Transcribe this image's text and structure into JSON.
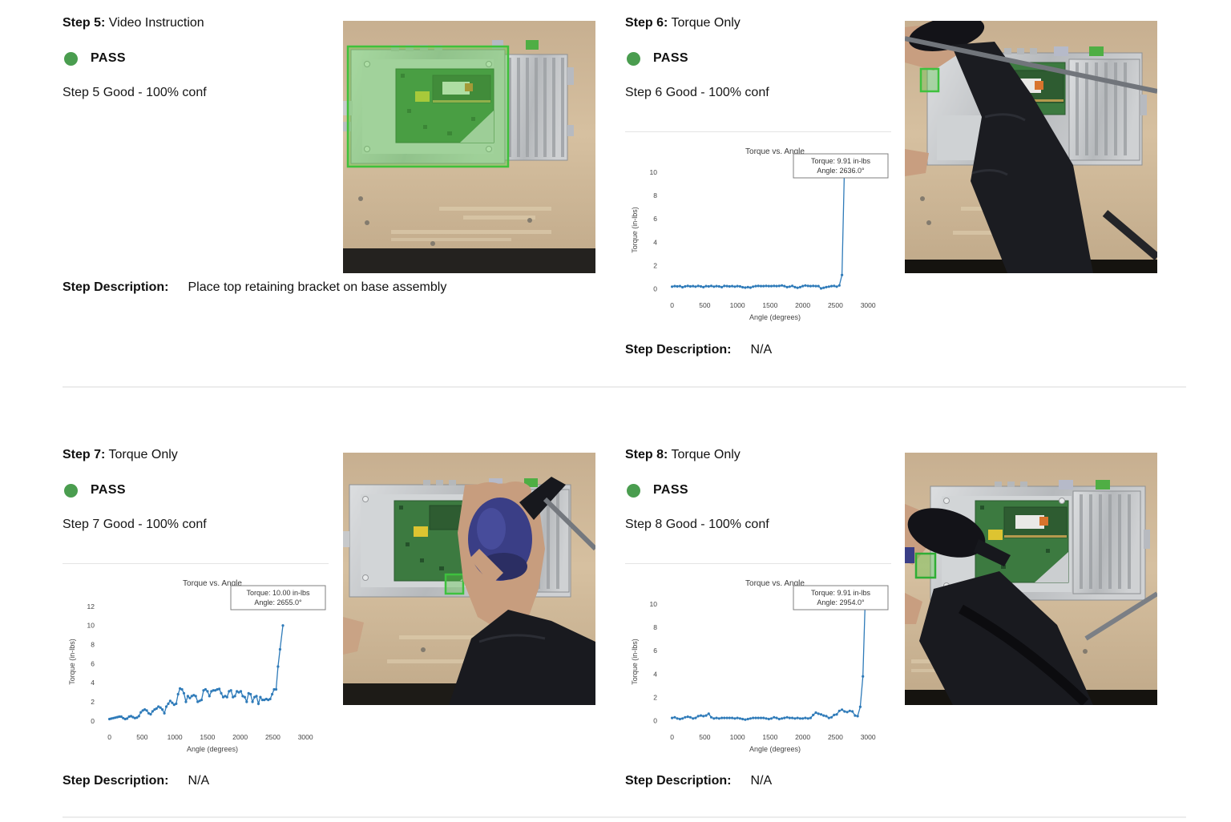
{
  "colors": {
    "pass_green": "#4a9d4f",
    "chart_line": "#2f7bb9",
    "detection_green": "#3ec13e"
  },
  "steps": [
    {
      "title_label": "Step 5:",
      "title_type": "Video Instruction",
      "status": "PASS",
      "result": "Step 5 Good - 100% conf",
      "desc_label": "Step Description:",
      "desc": "Place top retaining bracket on base assembly"
    },
    {
      "title_label": "Step 6:",
      "title_type": "Torque Only",
      "status": "PASS",
      "result": "Step 6 Good - 100% conf",
      "desc_label": "Step Description:",
      "desc": "N/A"
    },
    {
      "title_label": "Step 7:",
      "title_type": "Torque Only",
      "status": "PASS",
      "result": "Step 7 Good - 100% conf",
      "desc_label": "Step Description:",
      "desc": "N/A"
    },
    {
      "title_label": "Step 8:",
      "title_type": "Torque Only",
      "status": "PASS",
      "result": "Step 8 Good - 100% conf",
      "desc_label": "Step Description:",
      "desc": "N/A"
    }
  ],
  "chart_data": [
    {
      "type": "line",
      "step": "Step 6",
      "title": "Torque vs. Angle",
      "xlabel": "Angle (degrees)",
      "ylabel": "Torque (in-lbs)",
      "x_ticks": [
        0,
        500,
        1000,
        1500,
        2000,
        2500,
        3000
      ],
      "y_ticks": [
        0,
        2,
        4,
        6,
        8,
        10
      ],
      "xlim": [
        -130,
        3280
      ],
      "ylim": [
        -0.5,
        10.6
      ],
      "grid": false,
      "legend": null,
      "annotation": [
        "Torque: 9.91 in-lbs",
        "Angle: 2636.0°"
      ],
      "final_torque_inlbs": 9.91,
      "final_angle_deg": 2636.0,
      "points": [
        [
          0,
          0.2
        ],
        [
          40,
          0.25
        ],
        [
          80,
          0.22
        ],
        [
          120,
          0.25
        ],
        [
          160,
          0.15
        ],
        [
          200,
          0.22
        ],
        [
          240,
          0.26
        ],
        [
          280,
          0.22
        ],
        [
          320,
          0.25
        ],
        [
          360,
          0.2
        ],
        [
          400,
          0.26
        ],
        [
          440,
          0.22
        ],
        [
          480,
          0.16
        ],
        [
          520,
          0.25
        ],
        [
          560,
          0.22
        ],
        [
          600,
          0.26
        ],
        [
          640,
          0.2
        ],
        [
          680,
          0.25
        ],
        [
          720,
          0.22
        ],
        [
          760,
          0.16
        ],
        [
          800,
          0.26
        ],
        [
          840,
          0.25
        ],
        [
          880,
          0.22
        ],
        [
          920,
          0.25
        ],
        [
          960,
          0.2
        ],
        [
          1000,
          0.25
        ],
        [
          1040,
          0.22
        ],
        [
          1080,
          0.15
        ],
        [
          1120,
          0.12
        ],
        [
          1160,
          0.16
        ],
        [
          1200,
          0.12
        ],
        [
          1240,
          0.2
        ],
        [
          1280,
          0.25
        ],
        [
          1320,
          0.26
        ],
        [
          1360,
          0.25
        ],
        [
          1400,
          0.25
        ],
        [
          1440,
          0.26
        ],
        [
          1480,
          0.25
        ],
        [
          1520,
          0.25
        ],
        [
          1560,
          0.26
        ],
        [
          1600,
          0.25
        ],
        [
          1640,
          0.26
        ],
        [
          1680,
          0.3
        ],
        [
          1720,
          0.25
        ],
        [
          1760,
          0.16
        ],
        [
          1800,
          0.2
        ],
        [
          1840,
          0.26
        ],
        [
          1880,
          0.16
        ],
        [
          1920,
          0.1
        ],
        [
          1960,
          0.16
        ],
        [
          2000,
          0.25
        ],
        [
          2040,
          0.3
        ],
        [
          2080,
          0.26
        ],
        [
          2120,
          0.25
        ],
        [
          2160,
          0.26
        ],
        [
          2200,
          0.25
        ],
        [
          2240,
          0.25
        ],
        [
          2280,
          0.05
        ],
        [
          2320,
          0.1
        ],
        [
          2360,
          0.16
        ],
        [
          2400,
          0.2
        ],
        [
          2440,
          0.25
        ],
        [
          2480,
          0.26
        ],
        [
          2520,
          0.2
        ],
        [
          2560,
          0.3
        ],
        [
          2600,
          1.2
        ],
        [
          2636,
          9.91
        ]
      ]
    },
    {
      "type": "line",
      "step": "Step 7",
      "title": "Torque vs. Angle",
      "xlabel": "Angle (degrees)",
      "ylabel": "Torque (in-lbs)",
      "x_ticks": [
        0,
        500,
        1000,
        1500,
        2000,
        2500,
        3000
      ],
      "y_ticks": [
        0,
        2,
        4,
        6,
        8,
        10,
        12
      ],
      "xlim": [
        -130,
        3280
      ],
      "ylim": [
        -0.6,
        13.0
      ],
      "grid": false,
      "legend": null,
      "annotation": [
        "Torque: 10.00 in-lbs",
        "Angle: 2655.0°"
      ],
      "final_torque_inlbs": 10.0,
      "final_angle_deg": 2655.0,
      "points": [
        [
          0,
          0.2
        ],
        [
          30,
          0.25
        ],
        [
          60,
          0.3
        ],
        [
          90,
          0.35
        ],
        [
          120,
          0.4
        ],
        [
          150,
          0.45
        ],
        [
          180,
          0.45
        ],
        [
          210,
          0.3
        ],
        [
          240,
          0.2
        ],
        [
          270,
          0.25
        ],
        [
          300,
          0.45
        ],
        [
          330,
          0.5
        ],
        [
          360,
          0.4
        ],
        [
          390,
          0.3
        ],
        [
          420,
          0.35
        ],
        [
          450,
          0.5
        ],
        [
          480,
          0.9
        ],
        [
          510,
          1.1
        ],
        [
          540,
          1.2
        ],
        [
          570,
          1.1
        ],
        [
          600,
          0.8
        ],
        [
          630,
          0.7
        ],
        [
          660,
          1.0
        ],
        [
          690,
          1.2
        ],
        [
          720,
          1.3
        ],
        [
          750,
          1.5
        ],
        [
          780,
          1.4
        ],
        [
          810,
          1.2
        ],
        [
          840,
          0.8
        ],
        [
          870,
          1.5
        ],
        [
          900,
          1.8
        ],
        [
          930,
          2.1
        ],
        [
          960,
          1.9
        ],
        [
          990,
          1.7
        ],
        [
          1020,
          1.8
        ],
        [
          1050,
          2.8
        ],
        [
          1080,
          3.4
        ],
        [
          1110,
          3.3
        ],
        [
          1140,
          2.9
        ],
        [
          1170,
          2.0
        ],
        [
          1200,
          2.6
        ],
        [
          1230,
          2.4
        ],
        [
          1260,
          2.6
        ],
        [
          1290,
          2.7
        ],
        [
          1320,
          2.6
        ],
        [
          1350,
          2.0
        ],
        [
          1380,
          2.1
        ],
        [
          1410,
          2.2
        ],
        [
          1440,
          3.2
        ],
        [
          1470,
          3.3
        ],
        [
          1500,
          3.1
        ],
        [
          1530,
          2.6
        ],
        [
          1560,
          3.1
        ],
        [
          1590,
          3.2
        ],
        [
          1620,
          3.2
        ],
        [
          1650,
          3.3
        ],
        [
          1680,
          3.35
        ],
        [
          1710,
          2.9
        ],
        [
          1740,
          2.5
        ],
        [
          1770,
          2.6
        ],
        [
          1800,
          2.5
        ],
        [
          1830,
          3.1
        ],
        [
          1860,
          3.2
        ],
        [
          1890,
          2.5
        ],
        [
          1920,
          2.6
        ],
        [
          1950,
          3.1
        ],
        [
          1980,
          3.0
        ],
        [
          2010,
          3.1
        ],
        [
          2040,
          2.6
        ],
        [
          2070,
          2.5
        ],
        [
          2100,
          2.0
        ],
        [
          2130,
          2.9
        ],
        [
          2160,
          2.8
        ],
        [
          2190,
          2.0
        ],
        [
          2220,
          2.5
        ],
        [
          2250,
          2.6
        ],
        [
          2280,
          1.8
        ],
        [
          2310,
          2.5
        ],
        [
          2340,
          2.2
        ],
        [
          2370,
          2.2
        ],
        [
          2400,
          2.3
        ],
        [
          2430,
          2.2
        ],
        [
          2460,
          2.3
        ],
        [
          2490,
          2.8
        ],
        [
          2520,
          3.3
        ],
        [
          2550,
          3.3
        ],
        [
          2580,
          5.7
        ],
        [
          2610,
          7.5
        ],
        [
          2655,
          10.0
        ]
      ]
    },
    {
      "type": "line",
      "step": "Step 8",
      "title": "Torque vs. Angle",
      "xlabel": "Angle (degrees)",
      "ylabel": "Torque (in-lbs)",
      "x_ticks": [
        0,
        500,
        1000,
        1500,
        2000,
        2500,
        3000
      ],
      "y_ticks": [
        0,
        2,
        4,
        6,
        8,
        10
      ],
      "xlim": [
        -130,
        3280
      ],
      "ylim": [
        -0.5,
        10.6
      ],
      "grid": false,
      "legend": null,
      "annotation": [
        "Torque: 9.91 in-lbs",
        "Angle: 2954.0°"
      ],
      "final_torque_inlbs": 9.91,
      "final_angle_deg": 2954.0,
      "points": [
        [
          0,
          0.25
        ],
        [
          40,
          0.3
        ],
        [
          80,
          0.2
        ],
        [
          120,
          0.15
        ],
        [
          160,
          0.2
        ],
        [
          200,
          0.3
        ],
        [
          240,
          0.35
        ],
        [
          280,
          0.3
        ],
        [
          320,
          0.2
        ],
        [
          360,
          0.25
        ],
        [
          400,
          0.4
        ],
        [
          440,
          0.45
        ],
        [
          480,
          0.4
        ],
        [
          520,
          0.45
        ],
        [
          560,
          0.6
        ],
        [
          600,
          0.3
        ],
        [
          640,
          0.2
        ],
        [
          680,
          0.25
        ],
        [
          720,
          0.2
        ],
        [
          760,
          0.25
        ],
        [
          800,
          0.25
        ],
        [
          840,
          0.25
        ],
        [
          880,
          0.25
        ],
        [
          920,
          0.25
        ],
        [
          960,
          0.2
        ],
        [
          1000,
          0.25
        ],
        [
          1040,
          0.2
        ],
        [
          1080,
          0.15
        ],
        [
          1120,
          0.1
        ],
        [
          1160,
          0.15
        ],
        [
          1200,
          0.2
        ],
        [
          1240,
          0.25
        ],
        [
          1280,
          0.25
        ],
        [
          1320,
          0.25
        ],
        [
          1360,
          0.25
        ],
        [
          1400,
          0.25
        ],
        [
          1440,
          0.2
        ],
        [
          1480,
          0.15
        ],
        [
          1520,
          0.2
        ],
        [
          1560,
          0.3
        ],
        [
          1600,
          0.25
        ],
        [
          1640,
          0.15
        ],
        [
          1680,
          0.2
        ],
        [
          1720,
          0.25
        ],
        [
          1760,
          0.3
        ],
        [
          1800,
          0.25
        ],
        [
          1840,
          0.25
        ],
        [
          1880,
          0.2
        ],
        [
          1920,
          0.25
        ],
        [
          1960,
          0.2
        ],
        [
          2000,
          0.2
        ],
        [
          2040,
          0.25
        ],
        [
          2080,
          0.2
        ],
        [
          2120,
          0.25
        ],
        [
          2160,
          0.5
        ],
        [
          2200,
          0.7
        ],
        [
          2240,
          0.6
        ],
        [
          2280,
          0.55
        ],
        [
          2320,
          0.45
        ],
        [
          2360,
          0.4
        ],
        [
          2400,
          0.25
        ],
        [
          2440,
          0.3
        ],
        [
          2480,
          0.5
        ],
        [
          2520,
          0.55
        ],
        [
          2560,
          0.85
        ],
        [
          2600,
          0.95
        ],
        [
          2640,
          0.8
        ],
        [
          2680,
          0.75
        ],
        [
          2720,
          0.85
        ],
        [
          2760,
          0.8
        ],
        [
          2800,
          0.45
        ],
        [
          2840,
          0.4
        ],
        [
          2880,
          1.2
        ],
        [
          2920,
          3.8
        ],
        [
          2954,
          9.91
        ]
      ]
    }
  ]
}
